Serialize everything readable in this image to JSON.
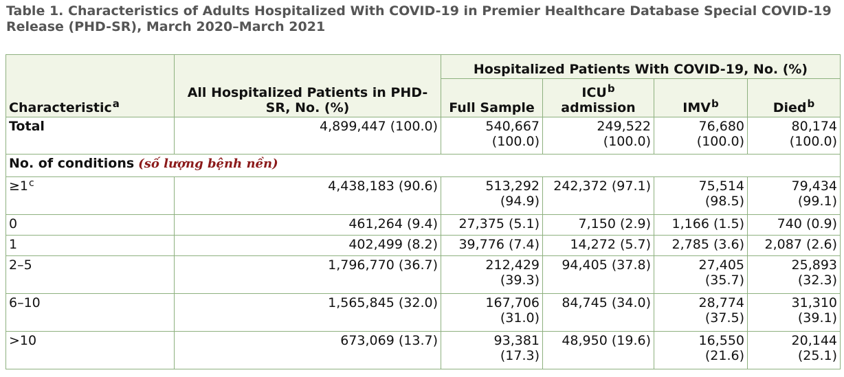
{
  "caption": "Table 1. Characteristics of Adults Hospitalized With COVID-19 in Premier Healthcare Database Special COVID-19 Release (PHD-SR), March 2020–March 2021",
  "header": {
    "characteristic": "Characteristic",
    "characteristic_sup": "a",
    "all_patients": "All Hospitalized Patients in PHD-SR, No. (%)",
    "covid_group": "Hospitalized Patients With COVID-19, No. (%)",
    "full_sample": "Full Sample",
    "icu_line1": "ICU",
    "icu_sup": "b",
    "icu_line2": "admission",
    "imv": "IMV",
    "imv_sup": "b",
    "died": "Died",
    "died_sup": "b"
  },
  "total_row": {
    "label": "Total",
    "all": "4,899,447 (100.0)",
    "full_1": "540,667",
    "full_2": "(100.0)",
    "icu_1": "249,522",
    "icu_2": "(100.0)",
    "imv_1": "76,680",
    "imv_2": "(100.0)",
    "died_1": "80,174",
    "died_2": "(100.0)"
  },
  "section": {
    "label": "No. of conditions",
    "annotation": "(số lượng bệnh nền)"
  },
  "rows": [
    {
      "label": "≥1",
      "sup": "c",
      "all": "4,438,183 (90.6)",
      "full_1": "513,292",
      "full_2": "(94.9)",
      "icu": "242,372 (97.1)",
      "imv_1": "75,514",
      "imv_2": "(98.5)",
      "died_1": "79,434",
      "died_2": "(99.1)"
    },
    {
      "label": "0",
      "all": "461,264 (9.4)",
      "full": "27,375 (5.1)",
      "icu": "7,150 (2.9)",
      "imv": "1,166 (1.5)",
      "died": "740 (0.9)"
    },
    {
      "label": "1",
      "all": "402,499 (8.2)",
      "full": "39,776 (7.4)",
      "icu": "14,272 (5.7)",
      "imv": "2,785 (3.6)",
      "died": "2,087 (2.6)"
    },
    {
      "label": "2–5",
      "all": "1,796,770 (36.7)",
      "full_1": "212,429",
      "full_2": "(39.3)",
      "icu": "94,405 (37.8)",
      "imv_1": "27,405",
      "imv_2": "(35.7)",
      "died_1": "25,893",
      "died_2": "(32.3)"
    },
    {
      "label": "6–10",
      "all": "1,565,845 (32.0)",
      "full_1": "167,706",
      "full_2": "(31.0)",
      "icu": "84,745 (34.0)",
      "imv_1": "28,774",
      "imv_2": "(37.5)",
      "died_1": "31,310",
      "died_2": "(39.1)"
    },
    {
      "label": ">10",
      "all": "673,069 (13.7)",
      "full_1": "93,381",
      "full_2": "(17.3)",
      "icu": "48,950 (19.6)",
      "imv_1": "16,550",
      "imv_2": "(21.6)",
      "died_1": "20,144",
      "died_2": "(25.1)"
    }
  ],
  "colors": {
    "border": "#8db07e",
    "header_bg": "#f1f5e7",
    "caption": "#555555",
    "annotation": "#8b1a1a",
    "highlight_orange": "#c8895a",
    "highlight_red": "#8b1a2a"
  }
}
